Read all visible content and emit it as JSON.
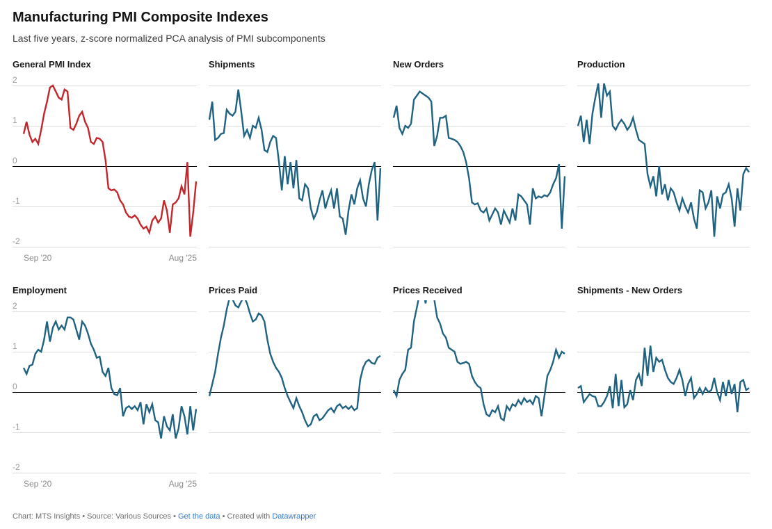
{
  "header": {
    "title": "Manufacturing PMI Composite Indexes",
    "subtitle": "Last five years, z-score normalized PCA analysis of PMI subcomponents"
  },
  "axis": {
    "y_tick_labels": [
      "2",
      "1",
      "0",
      "-1",
      "-2"
    ],
    "x_left": "Sep '20",
    "x_right": "Aug '25"
  },
  "colors": {
    "red": "#c3262a",
    "teal": "#1f6281",
    "grid": "#dcdcdc",
    "zero_line": "#000000",
    "axis_text": "#9b9b9b",
    "footer_text": "#707070",
    "link": "#2d7dd2"
  },
  "footer": {
    "text_before": "Chart: MTS Insights • Source: Various Sources • ",
    "get_data_link": "Get the data",
    "text_middle": " • Created with ",
    "datawrapper_link": "Datawrapper"
  },
  "chart_data": [
    {
      "type": "line",
      "title": "General PMI Index",
      "color": "#c3262a",
      "show_y_labels": true,
      "show_x_labels": true,
      "x_start": "Sep '20",
      "x_end": "Aug '25",
      "ylim": [
        -2.3,
        2.3
      ],
      "y_ticks": [
        2,
        1,
        0,
        -1,
        -2
      ],
      "values": [
        0.8,
        1.1,
        0.78,
        0.6,
        0.68,
        0.55,
        0.9,
        1.3,
        1.6,
        1.95,
        2.0,
        1.85,
        1.7,
        1.65,
        1.9,
        1.85,
        0.95,
        0.9,
        1.05,
        1.25,
        1.35,
        1.1,
        0.95,
        0.6,
        0.55,
        0.7,
        0.68,
        0.6,
        0.15,
        -0.55,
        -0.6,
        -0.58,
        -0.65,
        -0.85,
        -0.95,
        -1.15,
        -1.25,
        -1.28,
        -1.22,
        -1.3,
        -1.45,
        -1.55,
        -1.5,
        -1.65,
        -1.35,
        -1.25,
        -1.4,
        -1.3,
        -0.85,
        -1.1,
        -1.65,
        -0.95,
        -0.9,
        -0.8,
        -0.5,
        -0.7,
        0.1,
        -1.75,
        -1.15,
        -0.38
      ]
    },
    {
      "type": "line",
      "title": "Shipments",
      "color": "#1f6281",
      "show_y_labels": false,
      "show_x_labels": false,
      "x_start": "Sep '20",
      "x_end": "Aug '25",
      "ylim": [
        -2.3,
        2.3
      ],
      "y_ticks": [
        2,
        1,
        0,
        -1,
        -2
      ],
      "values": [
        1.15,
        1.6,
        0.65,
        0.7,
        0.8,
        0.82,
        1.4,
        1.3,
        1.25,
        1.35,
        1.9,
        1.35,
        0.75,
        0.9,
        0.7,
        1.0,
        0.95,
        1.2,
        0.9,
        0.4,
        0.35,
        0.6,
        0.75,
        0.7,
        0.1,
        -0.6,
        0.25,
        -0.45,
        0.1,
        -0.55,
        0.15,
        -0.8,
        -0.85,
        -0.45,
        -0.55,
        -1.05,
        -1.3,
        -1.15,
        -0.85,
        -0.6,
        -1.05,
        -0.8,
        -0.6,
        -1.05,
        -0.55,
        -1.25,
        -1.3,
        -1.7,
        -1.1,
        -0.7,
        -0.95,
        -0.55,
        -0.35,
        -0.8,
        -1.0,
        -0.45,
        -0.1,
        0.1,
        -1.35,
        -0.05
      ]
    },
    {
      "type": "line",
      "title": "New Orders",
      "color": "#1f6281",
      "show_y_labels": false,
      "show_x_labels": false,
      "x_start": "Sep '20",
      "x_end": "Aug '25",
      "ylim": [
        -2.3,
        2.3
      ],
      "y_ticks": [
        2,
        1,
        0,
        -1,
        -2
      ],
      "values": [
        1.2,
        1.5,
        0.95,
        0.8,
        1.0,
        0.95,
        1.05,
        1.65,
        1.75,
        1.85,
        1.8,
        1.75,
        1.7,
        1.6,
        0.5,
        0.75,
        1.2,
        1.2,
        1.25,
        0.7,
        0.68,
        0.65,
        0.6,
        0.5,
        0.35,
        0.1,
        -0.3,
        -0.9,
        -0.95,
        -0.92,
        -1.1,
        -1.15,
        -1.05,
        -1.35,
        -1.2,
        -1.05,
        -1.15,
        -1.45,
        -1.1,
        -1.25,
        -1.4,
        -1.05,
        -1.35,
        -0.7,
        -0.75,
        -0.85,
        -0.95,
        -1.45,
        -0.55,
        -0.8,
        -0.75,
        -0.78,
        -0.72,
        -0.75,
        -0.65,
        -0.45,
        -0.3,
        0.05,
        -1.55,
        -0.25
      ]
    },
    {
      "type": "line",
      "title": "Production",
      "color": "#1f6281",
      "show_y_labels": false,
      "show_x_labels": false,
      "x_start": "Sep '20",
      "x_end": "Aug '25",
      "ylim": [
        -2.3,
        2.3
      ],
      "y_ticks": [
        2,
        1,
        0,
        -1,
        -2
      ],
      "values": [
        1.0,
        1.25,
        0.6,
        1.15,
        0.55,
        1.3,
        1.7,
        2.05,
        1.2,
        2.05,
        1.75,
        1.85,
        1.0,
        0.9,
        1.05,
        1.15,
        1.05,
        0.9,
        1.0,
        1.2,
        0.9,
        0.65,
        0.6,
        0.55,
        -0.2,
        -0.5,
        -0.25,
        -0.75,
        0.0,
        -0.7,
        -0.45,
        -0.85,
        -0.55,
        -0.65,
        -0.9,
        -1.1,
        -0.8,
        -1.0,
        -1.15,
        -0.9,
        -1.3,
        -1.55,
        -0.6,
        -0.65,
        -1.05,
        -0.9,
        -0.6,
        -1.75,
        -0.75,
        -1.05,
        -0.7,
        -0.65,
        -0.45,
        -0.8,
        -1.5,
        -0.55,
        -1.1,
        -0.2,
        -0.05,
        -0.15
      ]
    },
    {
      "type": "line",
      "title": "Employment",
      "color": "#1f6281",
      "show_y_labels": true,
      "show_x_labels": true,
      "x_start": "Sep '20",
      "x_end": "Aug '25",
      "ylim": [
        -2.3,
        2.3
      ],
      "y_ticks": [
        2,
        1,
        0,
        -1,
        -2
      ],
      "values": [
        0.6,
        0.45,
        0.65,
        0.68,
        0.95,
        1.05,
        1.0,
        1.3,
        1.75,
        1.25,
        1.6,
        1.75,
        1.55,
        1.65,
        1.55,
        1.85,
        1.85,
        1.8,
        1.55,
        1.3,
        1.75,
        1.65,
        1.45,
        1.2,
        1.05,
        0.85,
        0.88,
        0.5,
        0.4,
        0.6,
        0.1,
        -0.05,
        -0.08,
        0.1,
        -0.6,
        -0.4,
        -0.35,
        -0.42,
        -0.35,
        -0.45,
        -0.25,
        -0.8,
        -0.3,
        -0.5,
        -0.3,
        -0.7,
        -0.75,
        -1.15,
        -0.6,
        -0.85,
        -0.95,
        -0.55,
        -1.15,
        -0.9,
        -0.35,
        -0.6,
        -1.05,
        -0.35,
        -0.95,
        -0.42
      ]
    },
    {
      "type": "line",
      "title": "Prices Paid",
      "color": "#1f6281",
      "show_y_labels": false,
      "show_x_labels": false,
      "x_start": "Sep '20",
      "x_end": "Aug '25",
      "ylim": [
        -2.3,
        2.3
      ],
      "y_ticks": [
        2,
        1,
        0,
        -1,
        -2
      ],
      "values": [
        -0.1,
        0.2,
        0.5,
        0.95,
        1.35,
        1.65,
        2.05,
        2.35,
        2.3,
        2.15,
        2.1,
        2.25,
        2.35,
        2.2,
        1.95,
        1.75,
        1.8,
        1.95,
        1.9,
        1.75,
        1.3,
        0.95,
        0.75,
        0.6,
        0.5,
        0.35,
        0.1,
        -0.1,
        -0.25,
        -0.4,
        -0.15,
        -0.35,
        -0.5,
        -0.7,
        -0.85,
        -0.8,
        -0.6,
        -0.55,
        -0.7,
        -0.65,
        -0.55,
        -0.45,
        -0.4,
        -0.5,
        -0.35,
        -0.3,
        -0.4,
        -0.35,
        -0.42,
        -0.35,
        -0.45,
        -0.4,
        0.3,
        0.6,
        0.75,
        0.8,
        0.72,
        0.7,
        0.85,
        0.9
      ]
    },
    {
      "type": "line",
      "title": "Prices Received",
      "color": "#1f6281",
      "show_y_labels": false,
      "show_x_labels": false,
      "x_start": "Sep '20",
      "x_end": "Aug '25",
      "ylim": [
        -2.3,
        2.3
      ],
      "y_ticks": [
        2,
        1,
        0,
        -1,
        -2
      ],
      "values": [
        0.05,
        -0.1,
        0.3,
        0.45,
        0.55,
        1.05,
        1.1,
        1.75,
        2.1,
        2.45,
        2.6,
        2.2,
        2.6,
        2.55,
        2.3,
        1.85,
        1.7,
        1.45,
        1.35,
        1.1,
        1.05,
        1.0,
        0.75,
        0.7,
        0.72,
        0.75,
        0.7,
        0.4,
        0.25,
        0.15,
        0.1,
        -0.3,
        -0.55,
        -0.6,
        -0.45,
        -0.5,
        -0.35,
        -0.65,
        -0.7,
        -0.35,
        -0.45,
        -0.3,
        -0.35,
        -0.2,
        -0.3,
        -0.15,
        -0.25,
        -0.2,
        -0.3,
        -0.1,
        -0.15,
        -0.6,
        -0.1,
        0.4,
        0.55,
        0.75,
        1.05,
        0.85,
        1.0,
        0.95
      ]
    },
    {
      "type": "line",
      "title": "Shipments - New Orders",
      "color": "#1f6281",
      "show_y_labels": false,
      "show_x_labels": false,
      "x_start": "Sep '20",
      "x_end": "Aug '25",
      "ylim": [
        -2.3,
        2.3
      ],
      "y_ticks": [
        2,
        1,
        0,
        -1,
        -2
      ],
      "values": [
        0.1,
        0.15,
        -0.25,
        -0.15,
        -0.05,
        -0.1,
        -0.12,
        -0.35,
        -0.35,
        -0.25,
        -0.1,
        0.15,
        -0.4,
        0.45,
        -0.35,
        0.3,
        -0.38,
        -0.3,
        0.05,
        -0.2,
        0.3,
        0.45,
        0.15,
        1.1,
        0.4,
        1.15,
        0.5,
        0.85,
        0.75,
        0.8,
        0.55,
        0.35,
        0.25,
        0.2,
        0.35,
        0.55,
        0.3,
        -0.1,
        0.2,
        0.35,
        -0.15,
        -0.05,
        0.1,
        -0.05,
        0.1,
        0.0,
        0.05,
        0.35,
        0.0,
        -0.2,
        0.25,
        -0.1,
        0.3,
        -0.05,
        0.2,
        -0.5,
        0.25,
        0.3,
        0.05,
        0.1
      ]
    }
  ]
}
